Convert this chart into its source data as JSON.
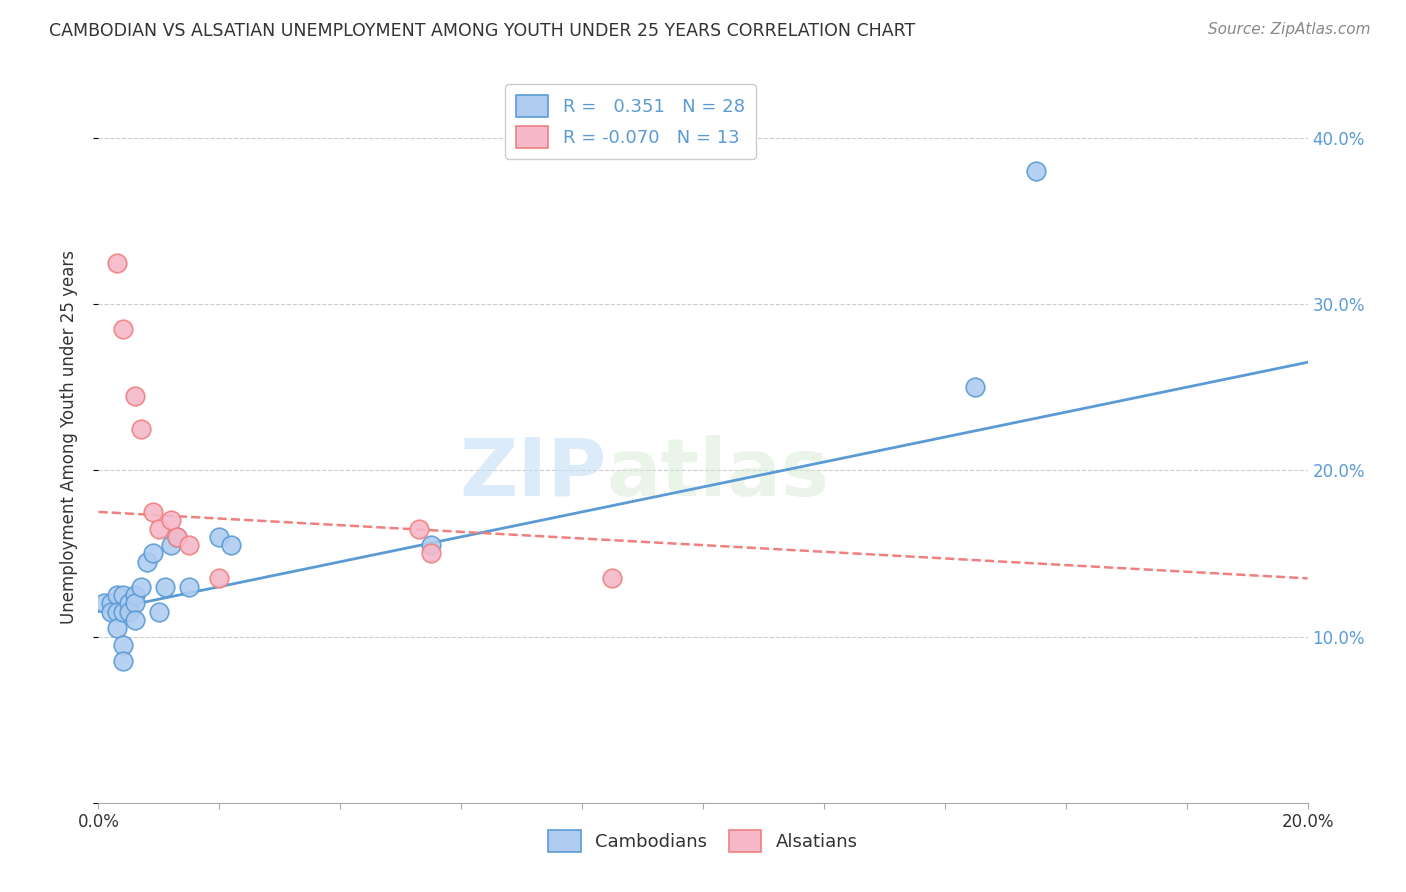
{
  "title": "CAMBODIAN VS ALSATIAN UNEMPLOYMENT AMONG YOUTH UNDER 25 YEARS CORRELATION CHART",
  "source": "Source: ZipAtlas.com",
  "ylabel": "Unemployment Among Youth under 25 years",
  "xlim": [
    0.0,
    0.2
  ],
  "ylim": [
    0.0,
    0.44
  ],
  "xticks": [
    0.0,
    0.02,
    0.04,
    0.06,
    0.08,
    0.1,
    0.12,
    0.14,
    0.16,
    0.18,
    0.2
  ],
  "yticks": [
    0.0,
    0.1,
    0.2,
    0.3,
    0.4
  ],
  "ytick_right_labels": [
    "",
    "10.0%",
    "20.0%",
    "30.0%",
    "40.0%"
  ],
  "xtick_labels": [
    "0.0%",
    "",
    "",
    "",
    "",
    "",
    "",
    "",
    "",
    "",
    "20.0%"
  ],
  "legend_labels": [
    "Cambodians",
    "Alsatians"
  ],
  "cambodian_R": 0.351,
  "cambodian_N": 28,
  "alsatian_R": -0.07,
  "alsatian_N": 13,
  "cambodian_color": "#aeccf0",
  "alsatian_color": "#f5b8c8",
  "cambodian_line_color": "#5b9bd5",
  "alsatian_line_color": "#f08080",
  "watermark_zip": "ZIP",
  "watermark_atlas": "atlas",
  "cambodian_x": [
    0.001,
    0.002,
    0.002,
    0.003,
    0.003,
    0.003,
    0.004,
    0.004,
    0.004,
    0.004,
    0.005,
    0.005,
    0.006,
    0.006,
    0.006,
    0.007,
    0.008,
    0.009,
    0.01,
    0.011,
    0.012,
    0.013,
    0.015,
    0.02,
    0.022,
    0.055,
    0.145,
    0.155
  ],
  "cambodian_y": [
    0.12,
    0.12,
    0.115,
    0.125,
    0.115,
    0.105,
    0.125,
    0.115,
    0.095,
    0.085,
    0.12,
    0.115,
    0.125,
    0.12,
    0.11,
    0.13,
    0.145,
    0.15,
    0.115,
    0.13,
    0.155,
    0.16,
    0.13,
    0.16,
    0.155,
    0.155,
    0.25,
    0.38
  ],
  "alsatian_x": [
    0.003,
    0.004,
    0.006,
    0.007,
    0.009,
    0.01,
    0.012,
    0.013,
    0.015,
    0.02,
    0.053,
    0.055,
    0.085
  ],
  "alsatian_y": [
    0.325,
    0.285,
    0.245,
    0.225,
    0.175,
    0.165,
    0.17,
    0.16,
    0.155,
    0.135,
    0.165,
    0.15,
    0.135
  ],
  "background_color": "#ffffff",
  "grid_color": "#cccccc",
  "cam_line_x0": 0.0,
  "cam_line_x1": 0.2,
  "cam_line_y0": 0.115,
  "cam_line_y1": 0.265,
  "als_line_x0": 0.0,
  "als_line_x1": 0.2,
  "als_line_y0": 0.175,
  "als_line_y1": 0.135
}
